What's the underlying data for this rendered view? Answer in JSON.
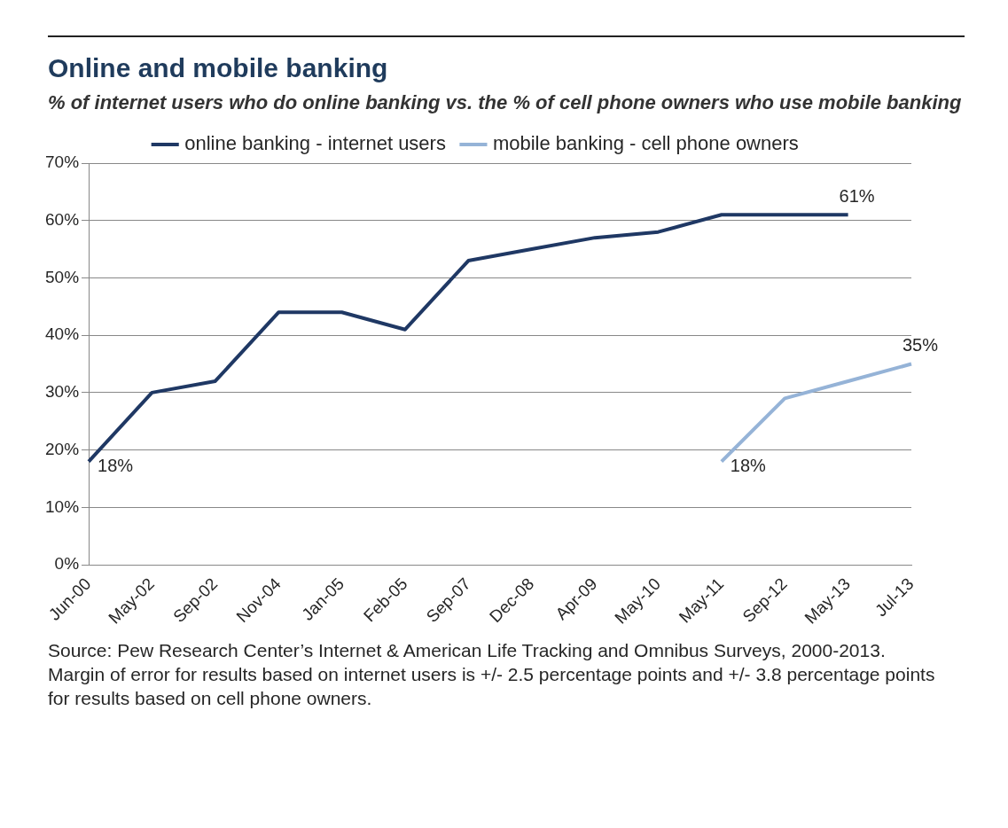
{
  "chart_data": {
    "type": "line",
    "title": "Online and mobile banking",
    "subtitle": "% of internet users who do online banking vs. the % of cell phone owners who use mobile banking",
    "categories": [
      "Jun-00",
      "May-02",
      "Sep-02",
      "Nov-04",
      "Jan-05",
      "Feb-05",
      "Sep-07",
      "Dec-08",
      "Apr-09",
      "May-10",
      "May-11",
      "Sep-12",
      "May-13",
      "Jul-13"
    ],
    "series": [
      {
        "name": "online banking - internet users",
        "color": "#1f3864",
        "values": [
          18,
          30,
          32,
          44,
          44,
          41,
          53,
          55,
          57,
          58,
          61,
          61,
          61,
          null
        ],
        "value_labels": [
          "18%",
          null,
          null,
          null,
          null,
          null,
          null,
          null,
          null,
          null,
          null,
          null,
          "61%",
          null
        ]
      },
      {
        "name": "mobile banking - cell phone owners",
        "color": "#95b3d7",
        "values": [
          null,
          null,
          null,
          null,
          null,
          null,
          null,
          null,
          null,
          null,
          18,
          29,
          32,
          35
        ],
        "value_labels": [
          null,
          null,
          null,
          null,
          null,
          null,
          null,
          null,
          null,
          null,
          "18%",
          null,
          null,
          "35%"
        ]
      }
    ],
    "ylim": [
      0,
      70
    ],
    "yticks": [
      {
        "value": 0,
        "label": "0%"
      },
      {
        "value": 10,
        "label": "10%"
      },
      {
        "value": 20,
        "label": "20%"
      },
      {
        "value": 30,
        "label": "30%"
      },
      {
        "value": 40,
        "label": "40%"
      },
      {
        "value": 50,
        "label": "50%"
      },
      {
        "value": 60,
        "label": "60%"
      },
      {
        "value": 70,
        "label": "70%"
      }
    ],
    "grid": "y",
    "legend": "top",
    "marker": "none",
    "line_style": "solid",
    "annotations": [
      "Source: Pew Research Center’s Internet & American Life Tracking and Omnibus Surveys, 2000-2013.  Margin of error for results based on internet users is +/- 2.5 percentage points and +/- 3.8 percentage points for results based on cell phone owners."
    ]
  }
}
